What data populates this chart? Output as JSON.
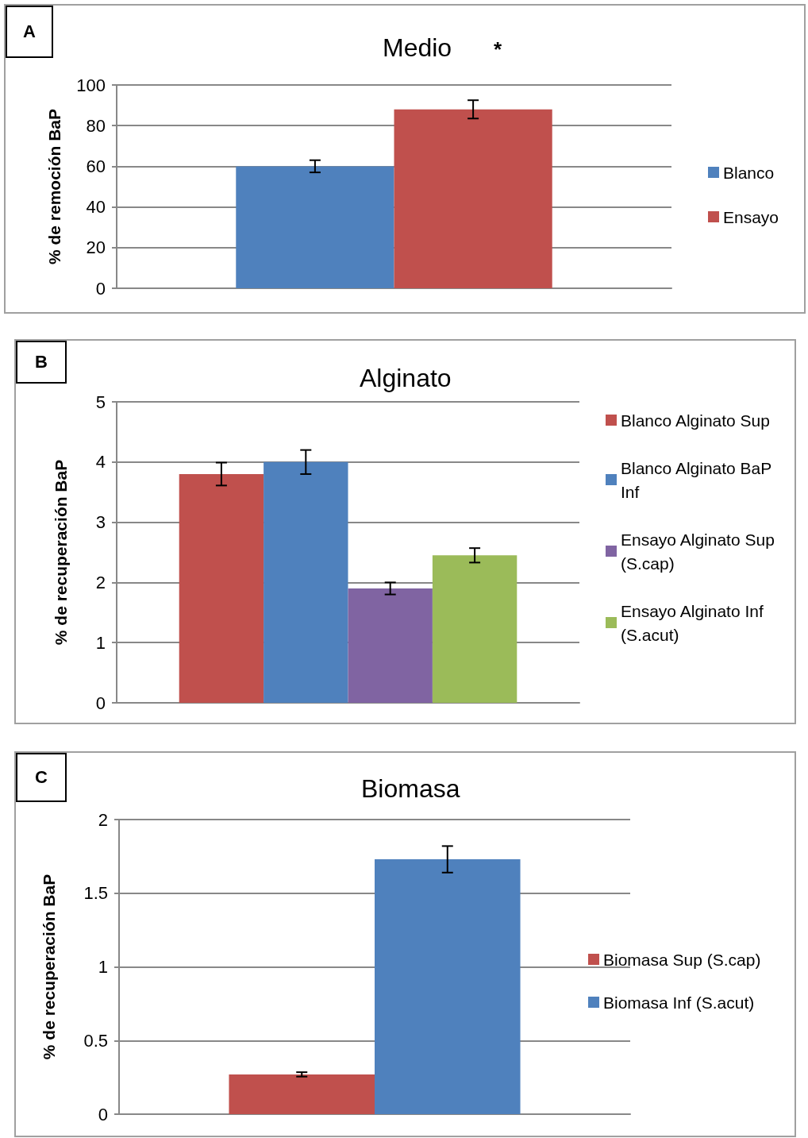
{
  "chart_data": [
    {
      "type": "bar",
      "title": "Medio",
      "ylabel": "% de remoción BaP",
      "annotations": [
        "A",
        "*"
      ],
      "categories": [
        null
      ],
      "ylim": [
        0,
        100
      ],
      "yticks": [
        0,
        20,
        40,
        60,
        80,
        100
      ],
      "grid": "y",
      "legend": "right",
      "series": [
        {
          "name": "Blanco",
          "color": "#4f81bd",
          "values": [
            60
          ],
          "errors": [
            3
          ]
        },
        {
          "name": "Ensayo",
          "color": "#c0504d",
          "values": [
            88
          ],
          "errors": [
            4.5
          ]
        }
      ]
    },
    {
      "type": "bar",
      "title": "Alginato",
      "ylabel": "% de recuperación BaP",
      "annotations": [
        "B"
      ],
      "categories": [
        null
      ],
      "ylim": [
        0,
        5
      ],
      "yticks": [
        0,
        1,
        2,
        3,
        4,
        5
      ],
      "grid": "y",
      "legend": "right",
      "series": [
        {
          "name": "Blanco Alginato Sup",
          "color": "#c0504d",
          "values": [
            3.8
          ],
          "errors": [
            0.19
          ]
        },
        {
          "name": "Blanco Alginato BaP Inf",
          "color": "#4f81bd",
          "values": [
            4.0
          ],
          "errors": [
            0.2
          ]
        },
        {
          "name": "Ensayo Alginato Sup (S.cap)",
          "color": "#8064a2",
          "values": [
            1.9
          ],
          "errors": [
            0.1
          ]
        },
        {
          "name": "Ensayo Alginato Inf (S.acut)",
          "color": "#9bbb59",
          "values": [
            2.45
          ],
          "errors": [
            0.12
          ]
        }
      ]
    },
    {
      "type": "bar",
      "title": "Biomasa",
      "ylabel": "% de recuperación BaP",
      "annotations": [
        "C"
      ],
      "categories": [
        null
      ],
      "ylim": [
        0,
        2
      ],
      "yticks": [
        0,
        0.5,
        1,
        1.5,
        2
      ],
      "grid": "y",
      "legend": "right",
      "series": [
        {
          "name": "Biomasa Sup (S.cap)",
          "color": "#c0504d",
          "values": [
            0.27
          ],
          "errors": [
            0.015
          ]
        },
        {
          "name": "Biomasa Inf (S.acut)",
          "color": "#4f81bd",
          "values": [
            1.73
          ],
          "errors": [
            0.09
          ]
        }
      ]
    }
  ]
}
